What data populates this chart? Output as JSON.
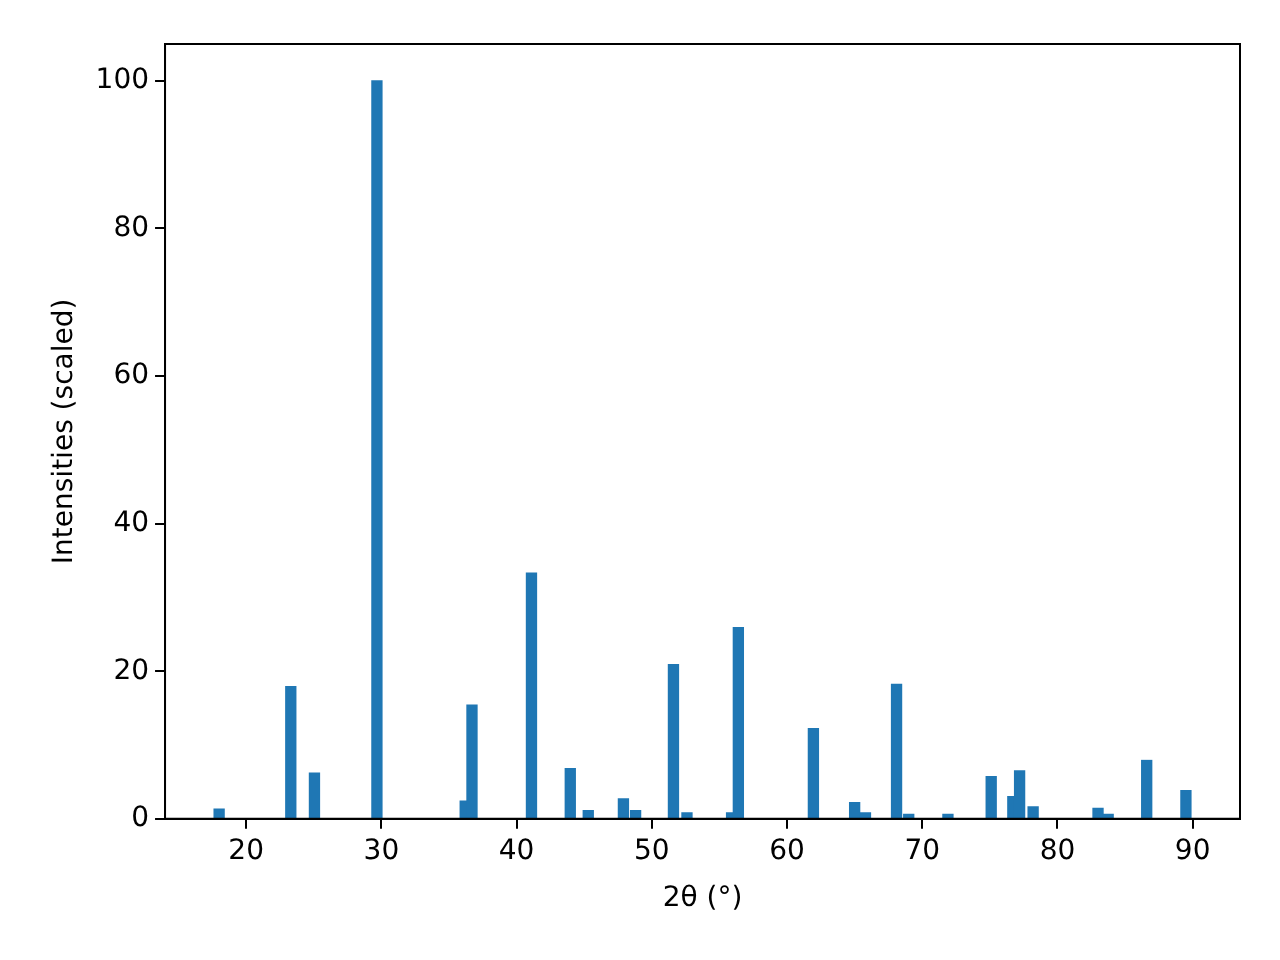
{
  "chart_data": {
    "type": "bar",
    "xlabel": "2θ (°)",
    "ylabel": "Intensities (scaled)",
    "x": [
      18.0,
      23.3,
      25.05,
      29.67,
      36.2,
      36.7,
      41.1,
      43.97,
      45.3,
      47.9,
      48.8,
      51.6,
      52.6,
      55.9,
      56.4,
      61.95,
      65.0,
      65.8,
      68.1,
      69.0,
      71.9,
      75.1,
      76.7,
      77.2,
      78.2,
      83.0,
      83.75,
      86.6,
      89.5
    ],
    "values": [
      1.3,
      17.9,
      6.2,
      100,
      2.4,
      15.4,
      33.3,
      6.8,
      1.1,
      2.7,
      1.1,
      20.9,
      0.8,
      0.8,
      25.9,
      12.2,
      2.2,
      0.8,
      18.2,
      0.6,
      0.6,
      5.7,
      3.0,
      6.5,
      1.6,
      1.4,
      0.6,
      7.9,
      3.8
    ],
    "color": "#1f77b4",
    "xlim": [
      14.0,
      93.5
    ],
    "xticks": [
      20,
      30,
      40,
      50,
      60,
      70,
      80,
      90
    ],
    "ylim": [
      0,
      105
    ],
    "yticks": [
      0,
      20,
      40,
      60,
      80,
      100
    ],
    "grid": false,
    "legend": false
  }
}
